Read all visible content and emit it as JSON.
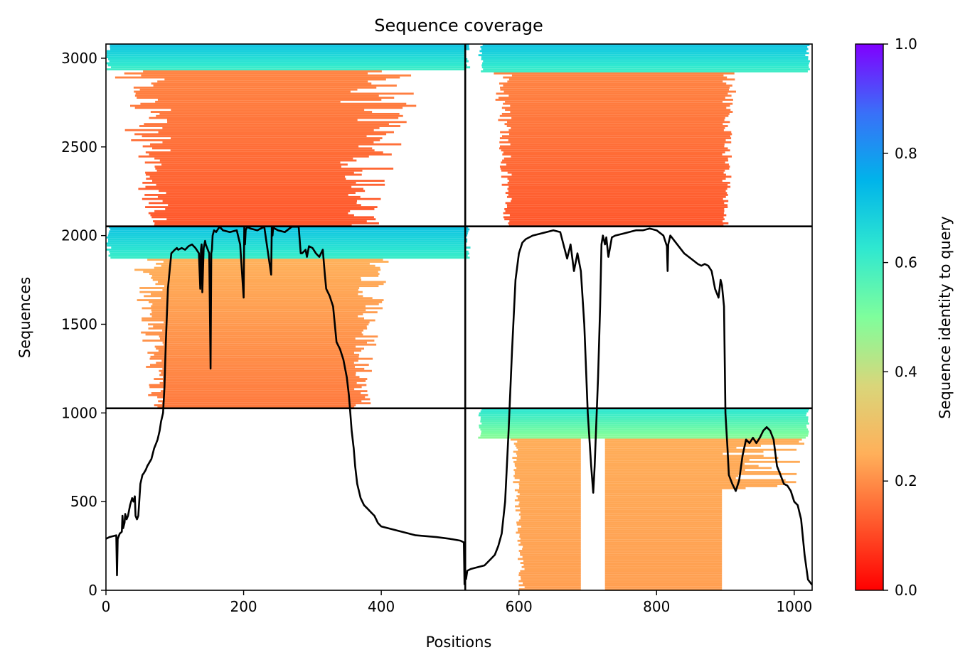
{
  "chart_data": {
    "type": "heatmap",
    "title": "Sequence coverage",
    "xlabel": "Positions",
    "ylabel": "Sequences",
    "xlim": [
      0,
      1026
    ],
    "ylim": [
      0,
      3080
    ],
    "xticks": [
      0,
      200,
      400,
      600,
      800,
      1000
    ],
    "yticks": [
      0,
      500,
      1000,
      1500,
      2000,
      2500,
      3000
    ],
    "colorbar": {
      "label": "Sequence identity to query",
      "range": [
        0,
        1
      ],
      "ticks": [
        "0.0",
        "0.2",
        "0.4",
        "0.6",
        "0.8",
        "1.0"
      ],
      "colormap": "rainbow"
    },
    "grid_dividers": {
      "x": [
        522
      ],
      "y": [
        1026,
        2052
      ]
    },
    "blocks": [
      {
        "name": "top-left",
        "x": [
          0,
          522
        ],
        "y": [
          2052,
          3080
        ],
        "high_identity_rows": [
          2930,
          3080
        ],
        "high_identity_span": [
          0,
          522
        ],
        "body_span": [
          95,
          340
        ],
        "ragged_extent": [
          0,
          480
        ],
        "identity_low": 0.12,
        "identity_high": 0.2
      },
      {
        "name": "top-right",
        "x": [
          522,
          1026
        ],
        "y": [
          2052,
          3080
        ],
        "high_identity_rows": [
          2920,
          3080
        ],
        "high_identity_span": [
          540,
          1015
        ],
        "body_span": [
          590,
          895
        ],
        "ragged_extent": [
          560,
          920
        ],
        "identity_low": 0.12,
        "identity_high": 0.2
      },
      {
        "name": "middle-left",
        "x": [
          0,
          522
        ],
        "y": [
          1026,
          2052
        ],
        "high_identity_rows": [
          1860,
          2052
        ],
        "high_identity_span": [
          0,
          522
        ],
        "body_span": [
          85,
          360
        ],
        "ragged_extent": [
          30,
          420
        ],
        "identity_low": 0.17,
        "identity_high": 0.27
      }
    ],
    "lower_right_block": {
      "x": [
        522,
        1026
      ],
      "y": [
        0,
        1026
      ],
      "high_identity_rows": [
        850,
        1026
      ],
      "high_identity_span": [
        540,
        1016
      ],
      "gap": [
        690,
        725
      ],
      "body_span": [
        585,
        895
      ],
      "ragged_extent": [
        900,
        1016
      ],
      "identity_low": 0.2,
      "identity_high": 0.25
    },
    "coverage_lines": [
      {
        "x": [
          0,
          5,
          15,
          16,
          17,
          20,
          23,
          24,
          25,
          27,
          28,
          30,
          32,
          35,
          38,
          40,
          42,
          43,
          45,
          47,
          50,
          53,
          55,
          58,
          60,
          63,
          66,
          70,
          73,
          75,
          78,
          80,
          83,
          85,
          87,
          90,
          95,
          100,
          103,
          105,
          110,
          115,
          120,
          125,
          130,
          135,
          137,
          138,
          139,
          140,
          142,
          143,
          144,
          145,
          147,
          150,
          152,
          153,
          154,
          155,
          157,
          160,
          165,
          170,
          180,
          190,
          195,
          200,
          201,
          202,
          203,
          205,
          210,
          220,
          230,
          240,
          241,
          242,
          243,
          245,
          250,
          260,
          270,
          280,
          283,
          285,
          290,
          292,
          295,
          300,
          305,
          310,
          315,
          318,
          320,
          325,
          330,
          335,
          340,
          345,
          350,
          353,
          355,
          357,
          360,
          362,
          365,
          370,
          375,
          380,
          385,
          390,
          395,
          400,
          410,
          420,
          430,
          450,
          480,
          500,
          515,
          520,
          521
        ],
        "y": [
          290,
          300,
          310,
          85,
          290,
          320,
          330,
          420,
          350,
          380,
          430,
          400,
          420,
          480,
          520,
          500,
          530,
          420,
          400,
          420,
          600,
          650,
          660,
          680,
          700,
          720,
          740,
          800,
          830,
          850,
          900,
          950,
          1000,
          1150,
          1400,
          1700,
          1900,
          1920,
          1930,
          1920,
          1930,
          1920,
          1940,
          1950,
          1930,
          1900,
          1700,
          1920,
          1950,
          1680,
          1930,
          1950,
          1970,
          1950,
          1930,
          1900,
          1250,
          1900,
          1920,
          2000,
          2030,
          2020,
          2050,
          2030,
          2020,
          2030,
          1950,
          1650,
          2050,
          1950,
          2030,
          2050,
          2040,
          2030,
          2050,
          1780,
          2050,
          2000,
          2050,
          2040,
          2030,
          2020,
          2050,
          2050,
          1900,
          1900,
          1920,
          1880,
          1940,
          1930,
          1900,
          1880,
          1920,
          1780,
          1700,
          1660,
          1600,
          1400,
          1360,
          1300,
          1200,
          1100,
          1000,
          900,
          800,
          700,
          600,
          520,
          480,
          460,
          440,
          420,
          380,
          360,
          350,
          340,
          330,
          310,
          300,
          290,
          280,
          270,
          30
        ]
      },
      {
        "x": [
          523,
          525,
          530,
          540,
          550,
          560,
          565,
          570,
          575,
          580,
          585,
          590,
          595,
          600,
          605,
          610,
          620,
          630,
          640,
          650,
          660,
          670,
          675,
          680,
          685,
          690,
          695,
          700,
          705,
          708,
          710,
          712,
          715,
          718,
          720,
          722,
          725,
          727,
          730,
          735,
          740,
          750,
          760,
          770,
          780,
          790,
          800,
          810,
          815,
          816,
          817,
          820,
          830,
          840,
          850,
          860,
          865,
          870,
          875,
          880,
          885,
          890,
          893,
          895,
          898,
          900,
          903,
          905,
          910,
          915,
          920,
          925,
          930,
          935,
          940,
          945,
          950,
          955,
          960,
          965,
          970,
          975,
          980,
          985,
          990,
          995,
          1000,
          1005,
          1010,
          1015,
          1020,
          1026
        ],
        "y": [
          60,
          110,
          120,
          130,
          140,
          180,
          200,
          250,
          320,
          500,
          900,
          1350,
          1750,
          1900,
          1960,
          1980,
          2000,
          2010,
          2020,
          2030,
          2020,
          1870,
          1950,
          1800,
          1900,
          1800,
          1500,
          1000,
          700,
          550,
          700,
          900,
          1200,
          1600,
          1950,
          2000,
          1950,
          1990,
          1880,
          1990,
          2000,
          2010,
          2020,
          2030,
          2030,
          2040,
          2030,
          2000,
          1940,
          1800,
          1950,
          2000,
          1950,
          1900,
          1870,
          1840,
          1830,
          1840,
          1830,
          1800,
          1700,
          1650,
          1750,
          1720,
          1600,
          1000,
          800,
          650,
          600,
          560,
          620,
          760,
          850,
          830,
          860,
          830,
          860,
          900,
          920,
          900,
          850,
          700,
          650,
          600,
          590,
          560,
          500,
          480,
          400,
          200,
          60,
          30
        ]
      }
    ]
  }
}
